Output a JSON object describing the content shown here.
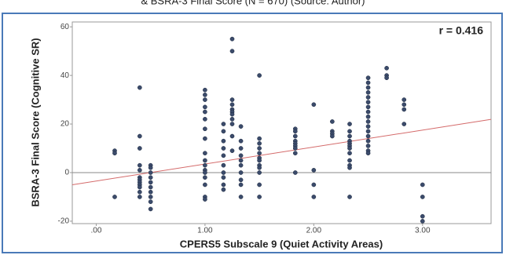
{
  "chart_data": {
    "type": "scatter",
    "title": "& BSRA-3 Final Score (N = 670) (Source: Author)",
    "annotation": "r = 0.416",
    "x_label": "CPERS5 Subscale 9 (Quiet Activity Areas)",
    "y_label": "BSRA-3 Final Score (Cognitive SR)",
    "color": "#3b4b6b",
    "xlim": [
      -0.22,
      3.63
    ],
    "ylim": [
      -21,
      62
    ],
    "xticks": [
      {
        "value": 0,
        "label": ".00"
      },
      {
        "value": 1,
        "label": "1.00"
      },
      {
        "value": 2,
        "label": "2.00"
      },
      {
        "value": 3,
        "label": "3.00"
      }
    ],
    "yticks": [
      -20,
      0,
      20,
      40,
      60
    ],
    "reference_line": 0,
    "fit_line": {
      "color": "#d46a6a",
      "x": [
        -0.22,
        3.63
      ],
      "y": [
        -5.0,
        21.9
      ]
    },
    "x": [
      0.17,
      0.17,
      0.17,
      0.4,
      0.4,
      0.4,
      0.4,
      0.4,
      0.4,
      0.4,
      0.4,
      0.4,
      0.4,
      0.4,
      0.4,
      0.5,
      0.5,
      0.5,
      0.5,
      0.5,
      0.5,
      0.5,
      0.5,
      0.5,
      0.5,
      1,
      1,
      1,
      1,
      1,
      1,
      1,
      1,
      1,
      1,
      1,
      1,
      1,
      1,
      1,
      1,
      1,
      1.17,
      1.17,
      1.17,
      1.17,
      1.17,
      1.17,
      1.17,
      1.17,
      1.17,
      1.17,
      1.25,
      1.25,
      1.25,
      1.25,
      1.25,
      1.25,
      1.25,
      1.25,
      1.25,
      1.25,
      1.25,
      1.33,
      1.33,
      1.33,
      1.33,
      1.33,
      1.33,
      1.33,
      1.33,
      1.33,
      1.33,
      1.5,
      1.5,
      1.5,
      1.5,
      1.5,
      1.5,
      1.5,
      1.5,
      1.5,
      1.5,
      1.5,
      1.5,
      1.83,
      1.83,
      1.83,
      1.83,
      1.83,
      1.83,
      1.83,
      1.83,
      1.83,
      2,
      2,
      2,
      2,
      2.17,
      2.17,
      2.17,
      2.17,
      2.33,
      2.33,
      2.33,
      2.33,
      2.33,
      2.33,
      2.33,
      2.33,
      2.33,
      2.33,
      2.33,
      2.33,
      2.5,
      2.5,
      2.5,
      2.5,
      2.5,
      2.5,
      2.5,
      2.5,
      2.5,
      2.5,
      2.5,
      2.5,
      2.5,
      2.5,
      2.5,
      2.5,
      2.5,
      2.67,
      2.67,
      2.67,
      2.83,
      2.83,
      2.83,
      2.83,
      3,
      3,
      3,
      3
    ],
    "y": [
      9,
      8,
      -10,
      35,
      15,
      10,
      3,
      1,
      -2,
      -3,
      -4,
      -5,
      -6,
      -8,
      -10,
      3,
      2,
      0,
      -2,
      -4,
      -6,
      -8,
      -10,
      -12,
      -15,
      34,
      32,
      30,
      27,
      25,
      22,
      18,
      14,
      8,
      5,
      3,
      1,
      0,
      -2,
      -5,
      -10,
      -11,
      20,
      17,
      13,
      10,
      7,
      3,
      0,
      -2,
      -5,
      -7,
      55,
      50,
      30,
      28,
      26,
      25,
      24,
      22,
      20,
      15,
      9,
      19,
      13,
      10,
      7,
      5,
      3,
      0,
      -3,
      -5,
      -10,
      40,
      14,
      12,
      10,
      8,
      6,
      5,
      3,
      2,
      0,
      -5,
      -10,
      18,
      17,
      15,
      13,
      12,
      11,
      10,
      8,
      0,
      28,
      1,
      -5,
      -10,
      21,
      17,
      16,
      15,
      20,
      17,
      15,
      13,
      12,
      11,
      10,
      8,
      5,
      3,
      2,
      -10,
      39,
      37,
      35,
      33,
      31,
      29,
      27,
      25,
      23,
      21,
      19,
      17,
      15,
      13,
      11,
      9,
      8,
      43,
      40,
      39,
      30,
      28,
      26,
      20,
      -5,
      -10,
      -18,
      -20
    ]
  }
}
